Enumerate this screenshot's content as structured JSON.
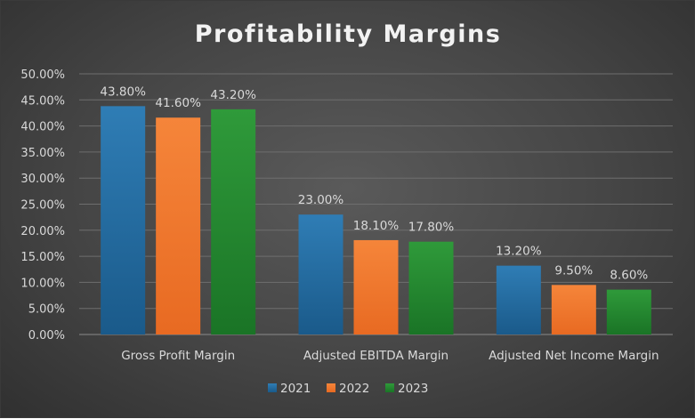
{
  "chart_data": {
    "type": "bar",
    "title": "Profitability Margins",
    "xlabel": "",
    "ylabel": "",
    "categories": [
      "Gross Profit Margin",
      "Adjusted EBITDA Margin",
      "Adjusted Net Income Margin"
    ],
    "series": [
      {
        "name": "2021",
        "color": "#1a5a8a",
        "color_light": "#2f7db5",
        "values": [
          43.8,
          23.0,
          13.2
        ],
        "labels": [
          "43.80%",
          "23.00%",
          "13.20%"
        ]
      },
      {
        "name": "2022",
        "color": "#e86a22",
        "color_light": "#f5853a",
        "values": [
          41.6,
          18.1,
          9.5
        ],
        "labels": [
          "41.60%",
          "18.10%",
          "9.50%"
        ]
      },
      {
        "name": "2023",
        "color": "#1a7426",
        "color_light": "#2f9a3a",
        "values": [
          43.2,
          17.8,
          8.6
        ],
        "labels": [
          "43.20%",
          "17.80%",
          "8.60%"
        ]
      }
    ],
    "ylim": [
      0,
      50
    ],
    "yticks": [
      0,
      5,
      10,
      15,
      20,
      25,
      30,
      35,
      40,
      45,
      50
    ],
    "ytick_labels": [
      "0.00%",
      "5.00%",
      "10.00%",
      "15.00%",
      "20.00%",
      "25.00%",
      "30.00%",
      "35.00%",
      "40.00%",
      "45.00%",
      "50.00%"
    ],
    "grid": true,
    "legend_position": "bottom"
  }
}
